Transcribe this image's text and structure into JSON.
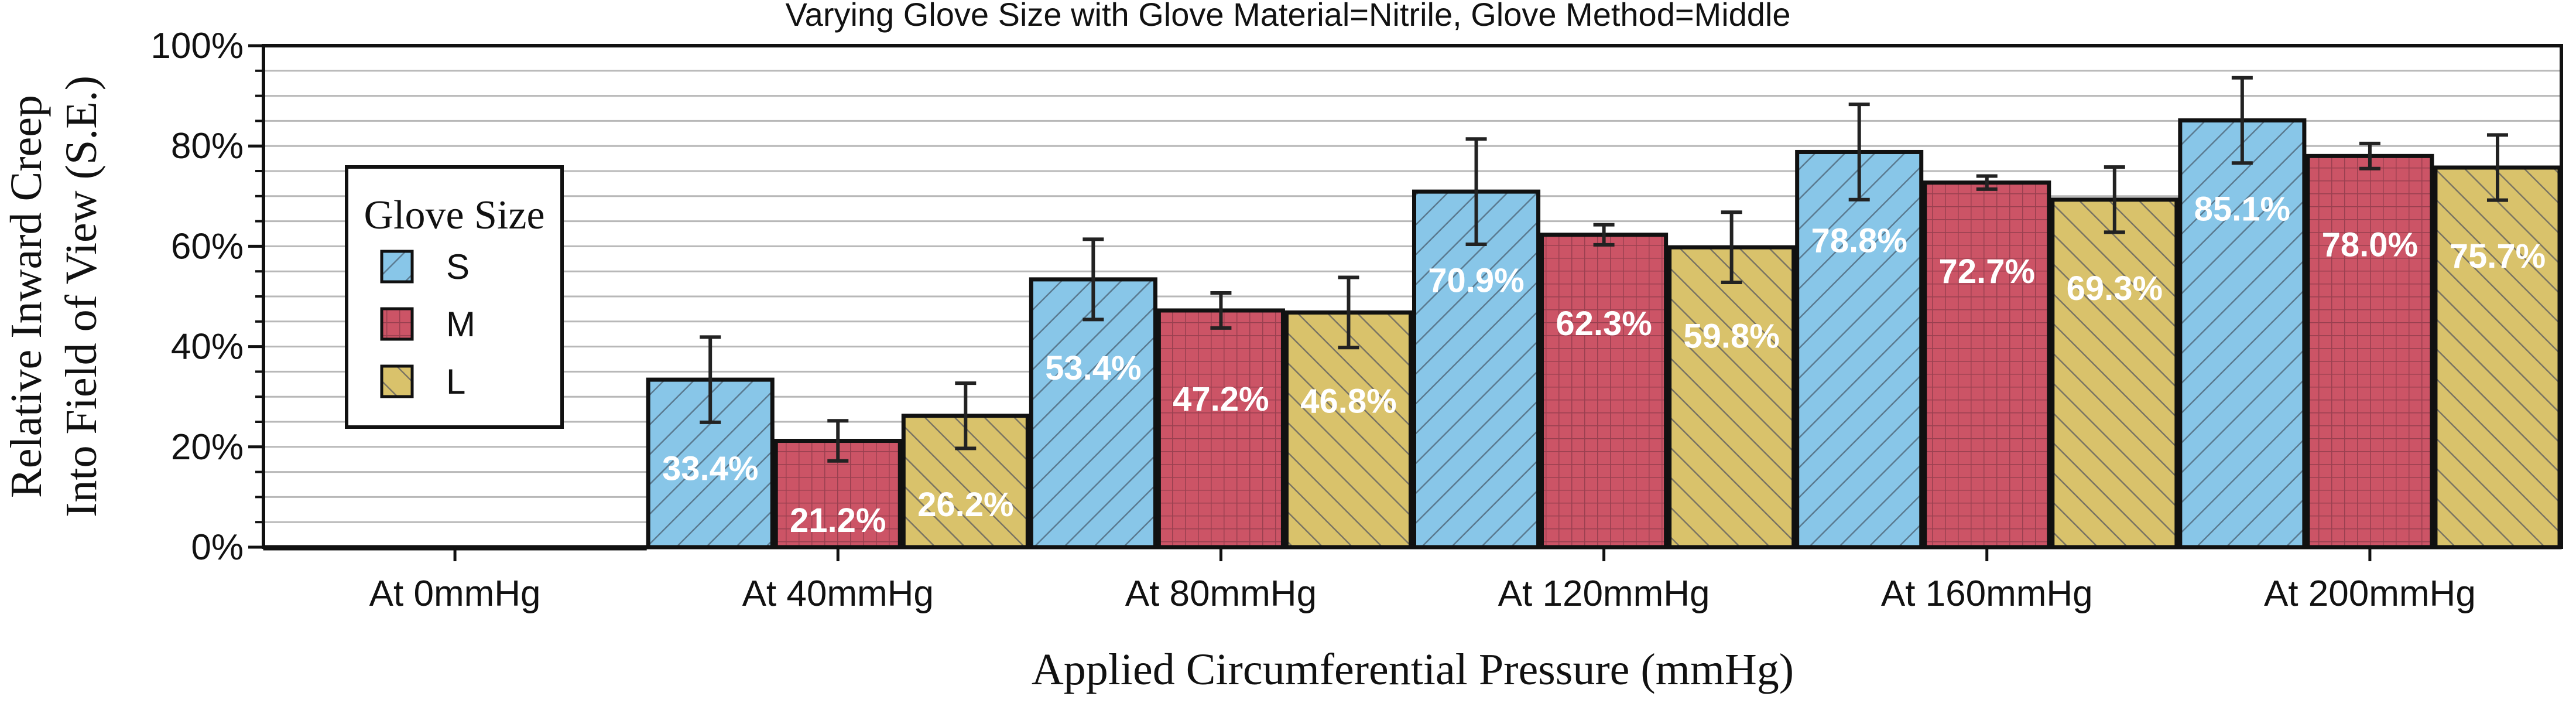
{
  "chart_data": {
    "type": "bar",
    "title": "Varying Glove Size with Glove Material=Nitrile, Glove Method=Middle",
    "xlabel": "Applied Circumferential Pressure (mmHg)",
    "ylabel_lines": [
      "Relative Inward Creep",
      "Into Field of View (S.E.)"
    ],
    "ylim": [
      0,
      100
    ],
    "yticks": [
      "0%",
      "20%",
      "40%",
      "60%",
      "80%",
      "100%"
    ],
    "ytick_values": [
      0,
      20,
      40,
      60,
      80,
      100
    ],
    "grid": true,
    "legend": {
      "title": "Glove Size",
      "placement": "left"
    },
    "categories": [
      "At 0mmHg",
      "At 40mmHg",
      "At 80mmHg",
      "At 120mmHg",
      "At 160mmHg",
      "At 200mmHg"
    ],
    "series": [
      {
        "name": "S",
        "color": "#88c6e8",
        "hatch": "diagonal-forward",
        "values": [
          0,
          33.4,
          53.4,
          70.9,
          78.8,
          85.1
        ],
        "errors": [
          0,
          8.5,
          8.0,
          10.5,
          9.5,
          8.5
        ],
        "labels": [
          "",
          "33.4%",
          "53.4%",
          "70.9%",
          "78.8%",
          "85.1%"
        ]
      },
      {
        "name": "M",
        "color": "#cc5466",
        "hatch": "grid",
        "values": [
          0,
          21.2,
          47.2,
          62.3,
          72.7,
          78.0
        ],
        "errors": [
          0,
          4.0,
          3.5,
          2.0,
          1.3,
          2.5
        ],
        "labels": [
          "",
          "21.2%",
          "47.2%",
          "62.3%",
          "72.7%",
          "78.0%"
        ]
      },
      {
        "name": "L",
        "color": "#d9c26b",
        "hatch": "diagonal-back",
        "values": [
          0,
          26.2,
          46.8,
          59.8,
          69.3,
          75.7
        ],
        "errors": [
          0,
          6.5,
          7.0,
          7.0,
          6.5,
          6.5
        ],
        "labels": [
          "",
          "26.2%",
          "46.8%",
          "59.8%",
          "69.3%",
          "75.7%"
        ]
      }
    ]
  }
}
